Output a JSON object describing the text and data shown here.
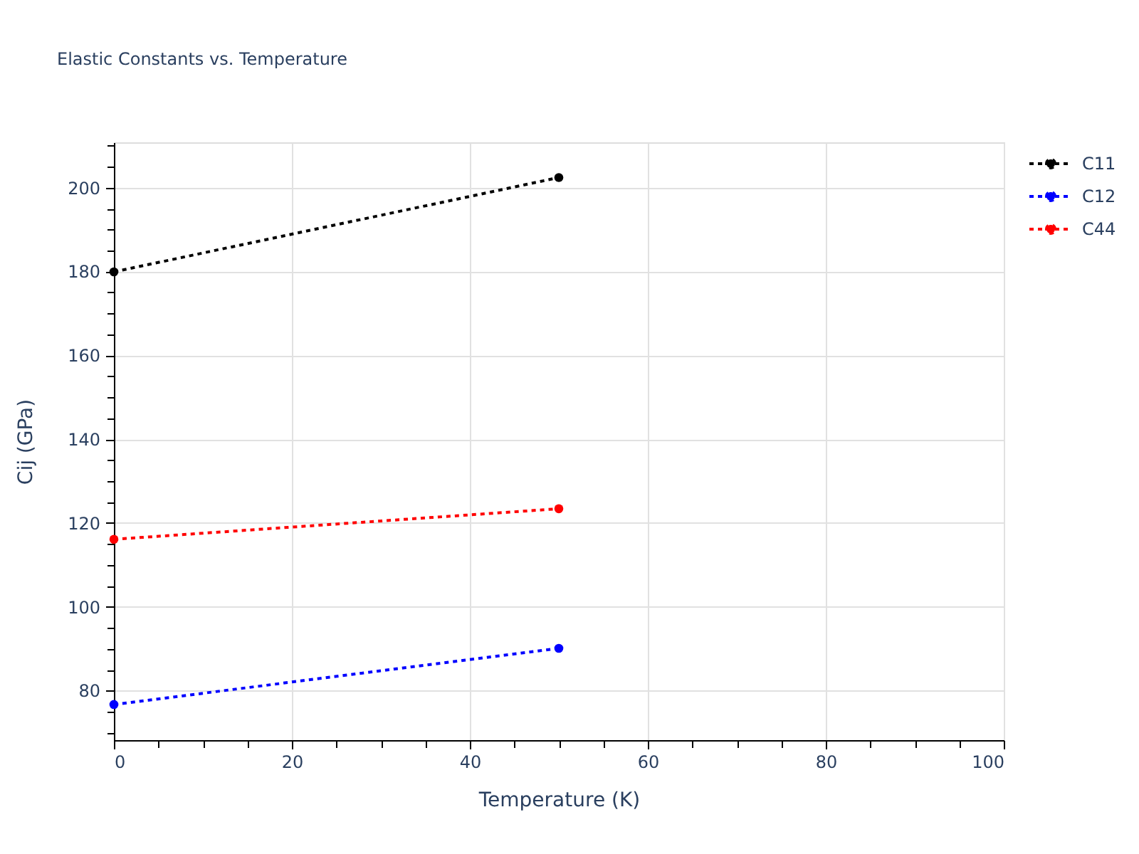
{
  "chart_data": {
    "type": "line",
    "title": "Elastic Constants vs. Temperature",
    "xlabel": "Temperature (K)",
    "ylabel": "Cij (GPa)",
    "x": [
      0,
      50
    ],
    "series": [
      {
        "name": "C11",
        "color": "#000000",
        "values": [
          179.9,
          202.4
        ]
      },
      {
        "name": "C12",
        "color": "#0000ff",
        "values": [
          76.7,
          90.1
        ]
      },
      {
        "name": "C44",
        "color": "#ff0000",
        "values": [
          116.1,
          123.4
        ]
      }
    ],
    "xlim": [
      0,
      100
    ],
    "ylim": [
      68.2,
      210.8
    ],
    "xticks": [
      0,
      {
        "value": 5,
        "label": null
      },
      {
        "value": 10,
        "label": null
      },
      {
        "value": 15,
        "label": null
      },
      20,
      {
        "value": 25,
        "label": null
      },
      {
        "value": 30,
        "label": null
      },
      {
        "value": 35,
        "label": null
      },
      40,
      {
        "value": 45,
        "label": null
      },
      {
        "value": 50,
        "label": null
      },
      {
        "value": 55,
        "label": null
      },
      60,
      {
        "value": 65,
        "label": null
      },
      {
        "value": 70,
        "label": null
      },
      {
        "value": 75,
        "label": null
      },
      80,
      {
        "value": 85,
        "label": null
      },
      {
        "value": 90,
        "label": null
      },
      {
        "value": 95,
        "label": null
      },
      100
    ],
    "yticks": [
      {
        "value": 70,
        "label": null
      },
      {
        "value": 75,
        "label": null
      },
      80,
      {
        "value": 85,
        "label": null
      },
      {
        "value": 90,
        "label": null
      },
      {
        "value": 95,
        "label": null
      },
      100,
      {
        "value": 105,
        "label": null
      },
      {
        "value": 110,
        "label": null
      },
      {
        "value": 115,
        "label": null
      },
      120,
      {
        "value": 125,
        "label": null
      },
      {
        "value": 130,
        "label": null
      },
      {
        "value": 135,
        "label": null
      },
      140,
      {
        "value": 145,
        "label": null
      },
      {
        "value": 150,
        "label": null
      },
      {
        "value": 155,
        "label": null
      },
      160,
      {
        "value": 165,
        "label": null
      },
      {
        "value": 170,
        "label": null
      },
      {
        "value": 175,
        "label": null
      },
      180,
      {
        "value": 185,
        "label": null
      },
      {
        "value": 190,
        "label": null
      },
      {
        "value": 195,
        "label": null
      },
      200,
      {
        "value": 205,
        "label": null
      },
      {
        "value": 210,
        "label": null
      }
    ],
    "grid": true,
    "legend": "top right",
    "marker": "circle",
    "line_style": "dotted"
  }
}
